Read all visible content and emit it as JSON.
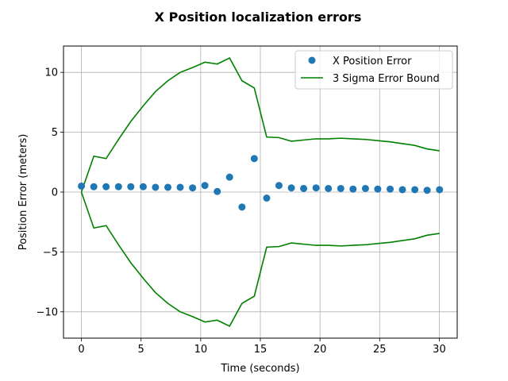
{
  "chart_data": {
    "type": "scatter",
    "title": "X Position localization errors",
    "xlabel": "Time (seconds)",
    "ylabel": "Position Error (meters)",
    "xlim": [
      -1.5,
      31.5
    ],
    "ylim": [
      -12.2,
      12.2
    ],
    "xticks": [
      0,
      5,
      10,
      15,
      20,
      25,
      30
    ],
    "xtick_labels": [
      "0",
      "5",
      "10",
      "15",
      "20",
      "25",
      "30"
    ],
    "yticks": [
      -10,
      -5,
      0,
      5,
      10
    ],
    "ytick_labels": [
      "−10",
      "−5",
      "0",
      "5",
      "10"
    ],
    "grid": true,
    "legend_position": "top-right",
    "colors": {
      "scatter": "#1f77b4",
      "bound": "#008000",
      "grid": "#b0b0b0"
    },
    "series": [
      {
        "name": "X Position Error",
        "kind": "scatter",
        "x": [
          0,
          1.04,
          2.07,
          3.11,
          4.14,
          5.18,
          6.21,
          7.25,
          8.28,
          9.32,
          10.35,
          11.39,
          12.42,
          13.46,
          14.49,
          15.53,
          16.56,
          17.6,
          18.63,
          19.67,
          20.7,
          21.74,
          22.77,
          23.81,
          24.84,
          25.88,
          26.91,
          27.95,
          28.98,
          30.02
        ],
        "y": [
          0.5,
          0.45,
          0.45,
          0.45,
          0.45,
          0.45,
          0.4,
          0.4,
          0.4,
          0.35,
          0.55,
          0.05,
          1.25,
          -1.25,
          2.8,
          -0.5,
          0.55,
          0.35,
          0.3,
          0.35,
          0.3,
          0.3,
          0.25,
          0.3,
          0.25,
          0.25,
          0.2,
          0.2,
          0.15,
          0.2
        ]
      },
      {
        "name": "3 Sigma Error Bound",
        "kind": "line",
        "x": [
          0,
          1.04,
          2.07,
          3.11,
          4.14,
          5.18,
          6.21,
          7.25,
          8.28,
          9.32,
          10.35,
          11.39,
          12.42,
          13.46,
          14.49,
          15.53,
          16.56,
          17.6,
          18.63,
          19.67,
          20.7,
          21.74,
          22.77,
          23.81,
          24.84,
          25.88,
          26.91,
          27.95,
          28.98,
          30.02
        ],
        "y_upper": [
          0,
          3.0,
          2.8,
          4.4,
          5.9,
          7.2,
          8.4,
          9.3,
          10.0,
          10.4,
          10.85,
          10.7,
          11.2,
          9.3,
          8.7,
          4.6,
          4.55,
          4.25,
          4.35,
          4.45,
          4.45,
          4.5,
          4.45,
          4.4,
          4.3,
          4.2,
          4.05,
          3.9,
          3.6,
          3.45
        ],
        "y_lower": [
          0,
          -3.0,
          -2.8,
          -4.4,
          -5.9,
          -7.2,
          -8.4,
          -9.3,
          -10.0,
          -10.4,
          -10.85,
          -10.7,
          -11.2,
          -9.3,
          -8.7,
          -4.6,
          -4.55,
          -4.25,
          -4.35,
          -4.45,
          -4.45,
          -4.5,
          -4.45,
          -4.4,
          -4.3,
          -4.2,
          -4.05,
          -3.9,
          -3.6,
          -3.45
        ]
      }
    ]
  }
}
